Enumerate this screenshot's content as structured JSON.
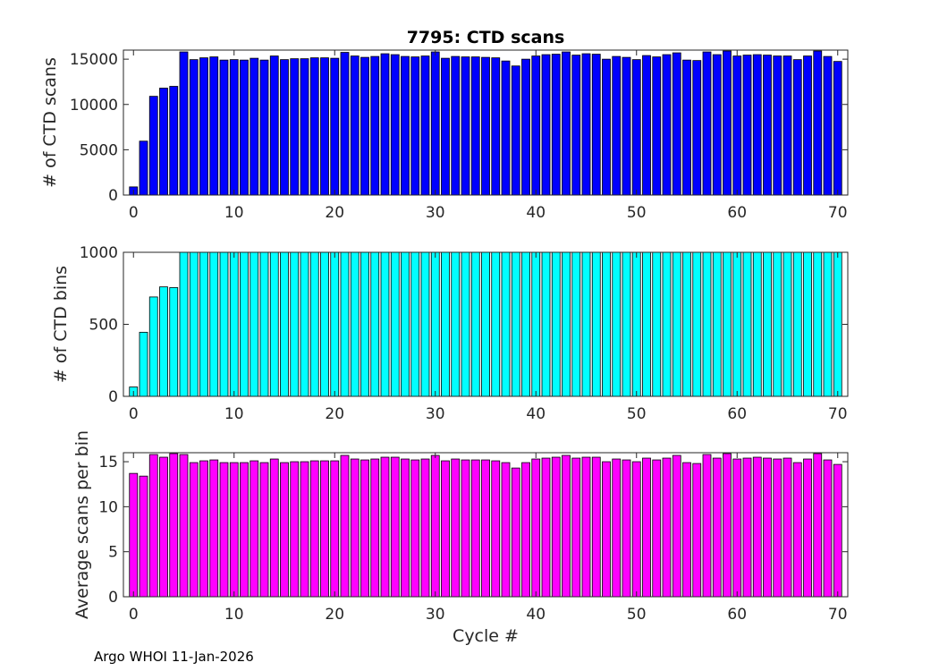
{
  "title": "7795: CTD scans",
  "footer": "Argo WHOI 11-Jan-2026",
  "xlabel": "Cycle #",
  "colors": {
    "scans": "#0000ff",
    "bins": "#00ffff",
    "avg": "#ff00ff",
    "edge": "#000000"
  },
  "chart_data": [
    {
      "type": "bar",
      "name": "scans",
      "ylabel": "# of CTD scans",
      "xlim": [
        -1,
        71
      ],
      "ylim": [
        0,
        16000
      ],
      "xticks": [
        0,
        10,
        20,
        30,
        40,
        50,
        60,
        70
      ],
      "yticks": [
        0,
        5000,
        10000,
        15000
      ],
      "grid": false,
      "x": [
        0,
        1,
        2,
        3,
        4,
        5,
        6,
        7,
        8,
        9,
        10,
        11,
        12,
        13,
        14,
        15,
        16,
        17,
        18,
        19,
        20,
        21,
        22,
        23,
        24,
        25,
        26,
        27,
        28,
        29,
        30,
        31,
        32,
        33,
        34,
        35,
        36,
        37,
        38,
        39,
        40,
        41,
        42,
        43,
        44,
        45,
        46,
        47,
        48,
        49,
        50,
        51,
        52,
        53,
        54,
        55,
        56,
        57,
        58,
        59,
        60,
        61,
        62,
        63,
        64,
        65,
        66,
        67,
        68,
        69,
        70
      ],
      "values": [
        900,
        5950,
        10900,
        11800,
        12000,
        15800,
        14950,
        15150,
        15250,
        14900,
        14950,
        14900,
        15100,
        14900,
        15350,
        14950,
        15050,
        15050,
        15150,
        15150,
        15100,
        15750,
        15350,
        15200,
        15300,
        15600,
        15500,
        15300,
        15250,
        15350,
        15800,
        15100,
        15300,
        15250,
        15250,
        15200,
        15150,
        14800,
        14250,
        15000,
        15350,
        15500,
        15550,
        15800,
        15450,
        15600,
        15550,
        15000,
        15300,
        15200,
        14950,
        15400,
        15250,
        15500,
        15700,
        14900,
        14850,
        15800,
        15500,
        15900,
        15350,
        15450,
        15500,
        15450,
        15350,
        15350,
        14950,
        15350,
        15900,
        15300,
        14750
      ]
    },
    {
      "type": "bar",
      "name": "bins",
      "ylabel": "# of CTD bins",
      "xlim": [
        -1,
        71
      ],
      "ylim": [
        0,
        1000
      ],
      "xticks": [
        0,
        10,
        20,
        30,
        40,
        50,
        60,
        70
      ],
      "yticks": [
        0,
        500,
        1000
      ],
      "grid": false,
      "x": [
        0,
        1,
        2,
        3,
        4,
        5,
        6,
        7,
        8,
        9,
        10,
        11,
        12,
        13,
        14,
        15,
        16,
        17,
        18,
        19,
        20,
        21,
        22,
        23,
        24,
        25,
        26,
        27,
        28,
        29,
        30,
        31,
        32,
        33,
        34,
        35,
        36,
        37,
        38,
        39,
        40,
        41,
        42,
        43,
        44,
        45,
        46,
        47,
        48,
        49,
        50,
        51,
        52,
        53,
        54,
        55,
        56,
        57,
        58,
        59,
        60,
        61,
        62,
        63,
        64,
        65,
        66,
        67,
        68,
        69,
        70
      ],
      "values": [
        65,
        445,
        690,
        760,
        755,
        1000,
        1000,
        1000,
        1000,
        1000,
        1000,
        1000,
        1000,
        1000,
        1000,
        1000,
        1000,
        1000,
        1000,
        1000,
        1000,
        1000,
        1000,
        1000,
        1000,
        1000,
        1000,
        1000,
        1000,
        1000,
        1000,
        1000,
        1000,
        1000,
        1000,
        1000,
        1000,
        1000,
        1000,
        1000,
        1000,
        1000,
        1000,
        1000,
        1000,
        1000,
        1000,
        1000,
        1000,
        1000,
        1000,
        1000,
        1000,
        1000,
        1000,
        1000,
        1000,
        1000,
        1000,
        1000,
        1000,
        1000,
        1000,
        1000,
        1000,
        1000,
        1000,
        1000,
        1000,
        1000,
        1000
      ]
    },
    {
      "type": "bar",
      "name": "avg",
      "ylabel": "Average scans per bin",
      "xlabel": "Cycle #",
      "xlim": [
        -1,
        71
      ],
      "ylim": [
        0,
        16
      ],
      "xticks": [
        0,
        10,
        20,
        30,
        40,
        50,
        60,
        70
      ],
      "yticks": [
        0,
        5,
        10,
        15
      ],
      "grid": false,
      "x": [
        0,
        1,
        2,
        3,
        4,
        5,
        6,
        7,
        8,
        9,
        10,
        11,
        12,
        13,
        14,
        15,
        16,
        17,
        18,
        19,
        20,
        21,
        22,
        23,
        24,
        25,
        26,
        27,
        28,
        29,
        30,
        31,
        32,
        33,
        34,
        35,
        36,
        37,
        38,
        39,
        40,
        41,
        42,
        43,
        44,
        45,
        46,
        47,
        48,
        49,
        50,
        51,
        52,
        53,
        54,
        55,
        56,
        57,
        58,
        59,
        60,
        61,
        62,
        63,
        64,
        65,
        66,
        67,
        68,
        69,
        70
      ],
      "values": [
        13.7,
        13.4,
        15.8,
        15.5,
        15.9,
        15.8,
        14.9,
        15.1,
        15.2,
        14.9,
        14.9,
        14.9,
        15.1,
        14.9,
        15.3,
        14.9,
        15.0,
        15.0,
        15.1,
        15.1,
        15.1,
        15.7,
        15.3,
        15.2,
        15.3,
        15.5,
        15.5,
        15.3,
        15.2,
        15.3,
        15.7,
        15.1,
        15.3,
        15.2,
        15.2,
        15.2,
        15.1,
        14.9,
        14.3,
        14.9,
        15.3,
        15.4,
        15.5,
        15.7,
        15.4,
        15.5,
        15.5,
        15.0,
        15.3,
        15.2,
        15.0,
        15.4,
        15.2,
        15.4,
        15.7,
        14.9,
        14.8,
        15.8,
        15.4,
        15.9,
        15.3,
        15.4,
        15.5,
        15.4,
        15.3,
        15.4,
        14.9,
        15.3,
        15.9,
        15.2,
        14.7
      ]
    }
  ]
}
